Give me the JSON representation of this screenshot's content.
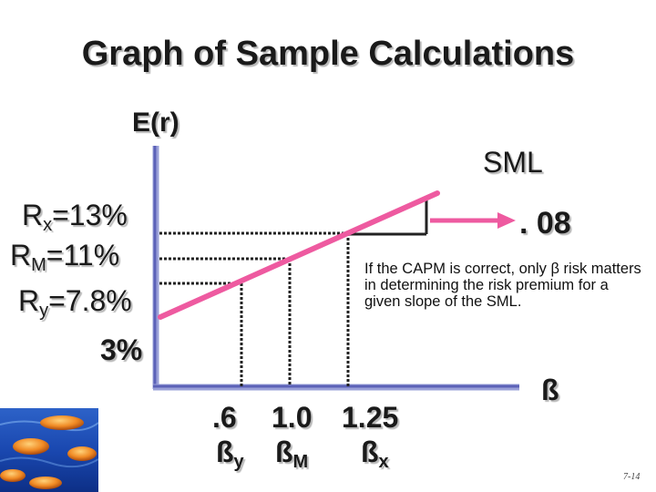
{
  "slide": {
    "title": "Graph of Sample Calculations",
    "slide_number": "7-14"
  },
  "chart_data": {
    "type": "line",
    "y_axis_label": "E(r)",
    "x_axis_label": "ß",
    "line_label": "SML",
    "slope_label": ". 08",
    "y_labels": [
      {
        "main": "R",
        "sub": "x",
        "rest": "=13%"
      },
      {
        "main": "R",
        "sub": "M",
        "rest": "=11%"
      },
      {
        "main": "R",
        "sub": "y",
        "rest": "=7.8%"
      },
      {
        "main": "3%",
        "sub": "",
        "rest": ""
      }
    ],
    "x_values": [
      ".6",
      "1.0",
      "1.25"
    ],
    "x_names": [
      {
        "main": "ß",
        "sub": "y"
      },
      {
        "main": "ß",
        "sub": "M"
      },
      {
        "main": "ß",
        "sub": "x"
      }
    ],
    "points": [
      {
        "beta": 0,
        "return": 3
      },
      {
        "beta": 0.6,
        "return": 7.8
      },
      {
        "beta": 1.0,
        "return": 11
      },
      {
        "beta": 1.25,
        "return": 13
      }
    ]
  },
  "note": "If the CAPM is correct, only β risk matters in determining the risk premium for a given slope of the SML.",
  "colors": {
    "sml_line": "#ee5aa0",
    "axis": "#6a6fc0",
    "arrow": "#ee5aa0"
  }
}
